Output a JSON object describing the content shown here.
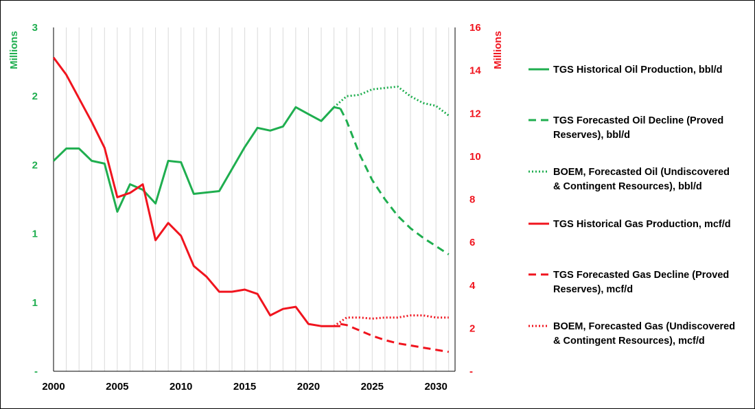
{
  "chart_data": {
    "type": "line",
    "title": "",
    "colors": {
      "oil": "#1fae4f",
      "gas": "#f0141e"
    },
    "x_axis": {
      "range": [
        2000,
        2031.5
      ],
      "ticks": [
        2000,
        2005,
        2010,
        2015,
        2020,
        2025,
        2030
      ],
      "tick_labels": [
        "2000",
        "2005",
        "2010",
        "2015",
        "2020",
        "2025",
        "2030"
      ]
    },
    "y_left": {
      "label": "Millions",
      "range": [
        0,
        2.5
      ],
      "ticks": [
        0,
        0.5,
        1,
        1.5,
        2,
        2.5
      ],
      "tick_labels": [
        "-",
        "1",
        "1",
        "2",
        "2",
        "3"
      ]
    },
    "y_right": {
      "label": "Millions",
      "range": [
        0,
        16
      ],
      "ticks": [
        0,
        2,
        4,
        6,
        8,
        10,
        12,
        14,
        16
      ],
      "tick_labels": [
        "-",
        "2",
        "4",
        "6",
        "8",
        "10",
        "12",
        "14",
        "16"
      ]
    },
    "grid": "vertical",
    "legend_position": "right",
    "series": [
      {
        "name": "TGS Historical Oil Production, bbl/d",
        "axis": "left",
        "color": "#1fae4f",
        "dash": "solid",
        "x": [
          2000,
          2001,
          2002,
          2003,
          2004,
          2005,
          2006,
          2007,
          2008,
          2009,
          2010,
          2011,
          2012,
          2013,
          2014,
          2015,
          2016,
          2017,
          2018,
          2019,
          2020,
          2021,
          2022,
          2022.5
        ],
        "values": [
          1.53,
          1.62,
          1.62,
          1.53,
          1.51,
          1.16,
          1.36,
          1.32,
          1.22,
          1.53,
          1.52,
          1.29,
          1.3,
          1.31,
          1.47,
          1.63,
          1.77,
          1.75,
          1.78,
          1.92,
          1.87,
          1.82,
          1.92,
          1.91
        ]
      },
      {
        "name": "TGS Forecasted Oil Decline (Proved Reserves), bbl/d",
        "axis": "left",
        "color": "#1fae4f",
        "dash": "dashed",
        "x": [
          2022.5,
          2023,
          2024,
          2025,
          2026,
          2027,
          2028,
          2029,
          2030,
          2031
        ],
        "values": [
          1.91,
          1.82,
          1.58,
          1.39,
          1.25,
          1.13,
          1.04,
          0.97,
          0.91,
          0.85
        ]
      },
      {
        "name": "BOEM, Forecasted Oil (Undiscovered & Contingent Resources), bbl/d",
        "axis": "left",
        "color": "#1fae4f",
        "dash": "dotted",
        "x": [
          2022,
          2023,
          2024,
          2025,
          2026,
          2027,
          2028,
          2029,
          2030,
          2031
        ],
        "values": [
          1.92,
          2.0,
          2.01,
          2.05,
          2.06,
          2.07,
          2.0,
          1.95,
          1.93,
          1.86
        ]
      },
      {
        "name": "TGS Historical Gas Production, mcf/d",
        "axis": "right",
        "color": "#f0141e",
        "dash": "solid",
        "x": [
          2000,
          2001,
          2002,
          2003,
          2004,
          2005,
          2006,
          2007,
          2008,
          2009,
          2010,
          2011,
          2012,
          2013,
          2014,
          2015,
          2016,
          2017,
          2018,
          2019,
          2020,
          2021,
          2022,
          2022.5
        ],
        "values": [
          14.6,
          13.8,
          12.7,
          11.6,
          10.4,
          8.1,
          8.3,
          8.7,
          6.1,
          6.9,
          6.3,
          4.9,
          4.4,
          3.7,
          3.7,
          3.8,
          3.6,
          2.6,
          2.9,
          3.0,
          2.2,
          2.1,
          2.1,
          2.1
        ]
      },
      {
        "name": "TGS Forecasted Gas Decline (Proved Reserves), mcf/d",
        "axis": "right",
        "color": "#f0141e",
        "dash": "dashed",
        "x": [
          2022.5,
          2023,
          2024,
          2025,
          2026,
          2027,
          2028,
          2029,
          2030,
          2031
        ],
        "values": [
          2.2,
          2.15,
          1.9,
          1.65,
          1.45,
          1.3,
          1.2,
          1.1,
          1.0,
          0.9
        ]
      },
      {
        "name": "BOEM, Forecasted Gas (Undiscovered & Contingent Resources), mcf/d",
        "axis": "right",
        "color": "#f0141e",
        "dash": "dotted",
        "x": [
          2022,
          2023,
          2024,
          2025,
          2026,
          2027,
          2028,
          2029,
          2030,
          2031
        ],
        "values": [
          2.1,
          2.5,
          2.5,
          2.45,
          2.5,
          2.5,
          2.6,
          2.6,
          2.5,
          2.5
        ]
      }
    ]
  }
}
